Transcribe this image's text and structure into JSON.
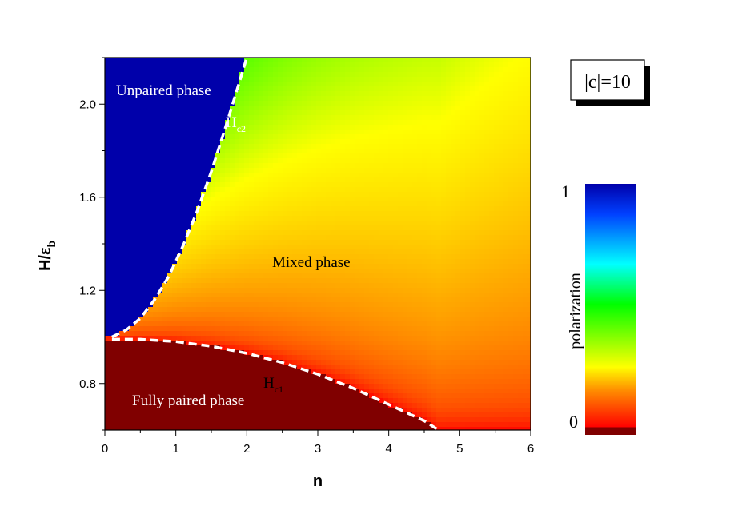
{
  "chart_data": {
    "type": "heatmap",
    "xlabel": "n",
    "ylabel_main": "H/ε",
    "ylabel_sub": "b",
    "xlim": [
      0,
      6
    ],
    "ylim": [
      0.6,
      2.2
    ],
    "xticks": [
      "0",
      "1",
      "2",
      "3",
      "4",
      "5",
      "6"
    ],
    "yticks": [
      "0.8",
      "1.2",
      "1.6",
      "2.0"
    ],
    "xtick_values": [
      0,
      1,
      2,
      3,
      4,
      5,
      6
    ],
    "ytick_values": [
      0.8,
      1.2,
      1.6,
      2.0
    ],
    "colorbar": {
      "label": "polarization",
      "max_label": "1",
      "min_label": "0",
      "colors_top_to_bottom": [
        "#0000aa",
        "#0040ff",
        "#00ffff",
        "#00ff00",
        "#ffff00",
        "#ff8000",
        "#ff0000",
        "#800000"
      ]
    },
    "phases": {
      "unpaired": "Unpaired phase",
      "mixed": "Mixed phase",
      "fully_paired": "Fully paired phase"
    },
    "curves": {
      "hc2": {
        "label_main": "H",
        "label_sub": "c2",
        "n": [
          0.1,
          0.3,
          0.5,
          0.7,
          0.9,
          1.1,
          1.3,
          1.5,
          1.7,
          1.9,
          2.0
        ],
        "H": [
          1.0,
          1.03,
          1.08,
          1.16,
          1.26,
          1.39,
          1.54,
          1.71,
          1.9,
          2.1,
          2.2
        ]
      },
      "hc1": {
        "label_main": "H",
        "label_sub": "c1",
        "n": [
          0.1,
          0.5,
          1.0,
          1.5,
          2.0,
          2.5,
          3.0,
          3.5,
          4.0,
          4.5,
          4.7
        ],
        "H": [
          0.99,
          0.99,
          0.98,
          0.96,
          0.93,
          0.89,
          0.84,
          0.78,
          0.71,
          0.64,
          0.6
        ]
      }
    },
    "inset_label": "|c|=10"
  }
}
